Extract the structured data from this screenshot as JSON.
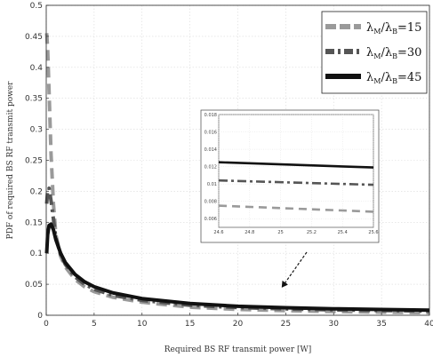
{
  "chart_data": {
    "type": "line",
    "title": "",
    "xlabel": "Required  BS RF transmit power [W]",
    "ylabel": "PDF of required BS RF transmit power",
    "xlim": [
      0,
      40
    ],
    "ylim": [
      0,
      0.5
    ],
    "xticks": [
      "0",
      "5",
      "10",
      "15",
      "20",
      "25",
      "30",
      "35",
      "40"
    ],
    "yticks": [
      "0",
      "0.05",
      "0.1",
      "0.15",
      "0.2",
      "0.25",
      "0.3",
      "0.35",
      "0.4",
      "0.45",
      "0.5"
    ],
    "grid": true,
    "legend_position": "top-right",
    "series": [
      {
        "name": "λM/λB=15",
        "color": "#9a9a9a",
        "style": "dashed",
        "x": [
          0.05,
          0.15,
          0.3,
          0.5,
          0.75,
          1.0,
          1.5,
          2,
          3,
          4,
          5,
          7,
          10,
          15,
          20,
          25,
          30,
          35,
          40
        ],
        "y": [
          0.455,
          0.43,
          0.36,
          0.26,
          0.18,
          0.13,
          0.095,
          0.078,
          0.058,
          0.046,
          0.038,
          0.029,
          0.021,
          0.013,
          0.0095,
          0.0074,
          0.006,
          0.005,
          0.0042
        ]
      },
      {
        "name": "λM/λB=30",
        "color": "#555555",
        "style": "dashdot",
        "x": [
          0.05,
          0.15,
          0.3,
          0.5,
          0.75,
          1.0,
          1.5,
          2,
          3,
          4,
          5,
          7,
          10,
          15,
          20,
          25,
          30,
          35,
          40
        ],
        "y": [
          0.18,
          0.2,
          0.205,
          0.185,
          0.155,
          0.125,
          0.098,
          0.082,
          0.062,
          0.05,
          0.042,
          0.032,
          0.024,
          0.016,
          0.0125,
          0.0103,
          0.0088,
          0.0077,
          0.0068
        ]
      },
      {
        "name": "λM/λB=45",
        "color": "#111111",
        "style": "solid",
        "x": [
          0.05,
          0.15,
          0.3,
          0.5,
          0.75,
          1.0,
          1.5,
          2,
          3,
          4,
          5,
          7,
          10,
          15,
          20,
          25,
          30,
          35,
          40
        ],
        "y": [
          0.1,
          0.13,
          0.145,
          0.147,
          0.138,
          0.122,
          0.1,
          0.085,
          0.066,
          0.054,
          0.046,
          0.036,
          0.027,
          0.019,
          0.0145,
          0.0122,
          0.0105,
          0.0093,
          0.0083
        ]
      }
    ],
    "legend_labels": [
      {
        "base": "λ",
        "sub1": "M",
        "slash": "/λ",
        "sub2": "B",
        "eq": "=15"
      },
      {
        "base": "λ",
        "sub1": "M",
        "slash": "/λ",
        "sub2": "B",
        "eq": "=30"
      },
      {
        "base": "λ",
        "sub1": "M",
        "slash": "/λ",
        "sub2": "B",
        "eq": "=45"
      }
    ],
    "inset": {
      "xlim": [
        24.6,
        25.6
      ],
      "ylim": [
        0.005,
        0.018
      ],
      "xticks": [
        "24.6",
        "24.8",
        "25",
        "25.2",
        "25.4",
        "25.6"
      ],
      "yticks": [
        "0.006",
        "0.008",
        "0.01",
        "0.012",
        "0.014",
        "0.016",
        "0.018"
      ],
      "series": [
        {
          "x": [
            24.6,
            25.6
          ],
          "y": [
            0.0075,
            0.0068
          ]
        },
        {
          "x": [
            24.6,
            25.6
          ],
          "y": [
            0.0104,
            0.0099
          ]
        },
        {
          "x": [
            24.6,
            25.6
          ],
          "y": [
            0.0125,
            0.0119
          ]
        }
      ],
      "points_to": {
        "x": 25,
        "y": 0.01
      }
    }
  }
}
